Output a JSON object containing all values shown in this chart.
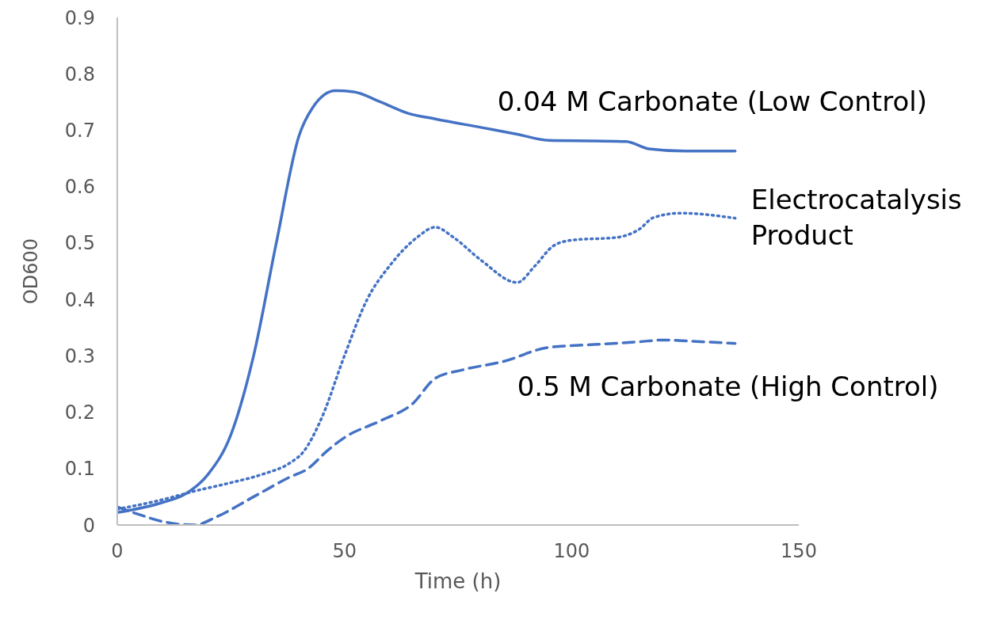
{
  "chart_data": {
    "type": "line",
    "xlabel": "Time (h)",
    "ylabel": "OD600",
    "xlim": [
      0,
      150
    ],
    "xticks": [
      0,
      50,
      100,
      150
    ],
    "ylim": [
      0,
      0.9
    ],
    "yticks": [
      0,
      0.1,
      0.2,
      0.3,
      0.4,
      0.5,
      0.6,
      0.7,
      0.8,
      0.9
    ],
    "grid": false,
    "legend": false,
    "marker": "none",
    "series": [
      {
        "name": "0.04 M Carbonate (Low Control)",
        "color": "#4472c4",
        "line_style": "solid",
        "x": [
          0,
          10,
          15,
          20,
          25,
          30,
          35,
          40,
          43,
          48,
          52,
          58,
          64,
          70,
          80,
          88,
          95,
          105,
          112,
          117,
          125,
          136
        ],
        "values": [
          0.022,
          0.04,
          0.055,
          0.09,
          0.16,
          0.3,
          0.5,
          0.69,
          0.74,
          0.77,
          0.768,
          0.75,
          0.73,
          0.72,
          0.705,
          0.693,
          0.682,
          0.681,
          0.68,
          0.667,
          0.663,
          0.663
        ]
      },
      {
        "name": "Electrocatalysis Product",
        "color": "#4472c4",
        "line_style": "dotted",
        "x": [
          0,
          10,
          17,
          25,
          32,
          38,
          41,
          45,
          50,
          55,
          60,
          66,
          70,
          74,
          80,
          88,
          92,
          96,
          100,
          110,
          115,
          118,
          124,
          136
        ],
        "values": [
          0.028,
          0.045,
          0.06,
          0.075,
          0.09,
          0.11,
          0.13,
          0.19,
          0.3,
          0.4,
          0.46,
          0.51,
          0.528,
          0.51,
          0.47,
          0.43,
          0.46,
          0.495,
          0.505,
          0.51,
          0.525,
          0.545,
          0.553,
          0.544
        ]
      },
      {
        "name": "0.5 M Carbonate (High Control)",
        "color": "#4472c4",
        "line_style": "dashed",
        "x": [
          0,
          5,
          10,
          17,
          22,
          30,
          38,
          42,
          46,
          50,
          58,
          65,
          70,
          76,
          85,
          95,
          105,
          115,
          120,
          126,
          136
        ],
        "values": [
          0.032,
          0.018,
          0.006,
          0.0,
          0.015,
          0.05,
          0.085,
          0.1,
          0.13,
          0.155,
          0.185,
          0.215,
          0.26,
          0.275,
          0.29,
          0.315,
          0.32,
          0.325,
          0.328,
          0.326,
          0.322
        ]
      }
    ]
  }
}
